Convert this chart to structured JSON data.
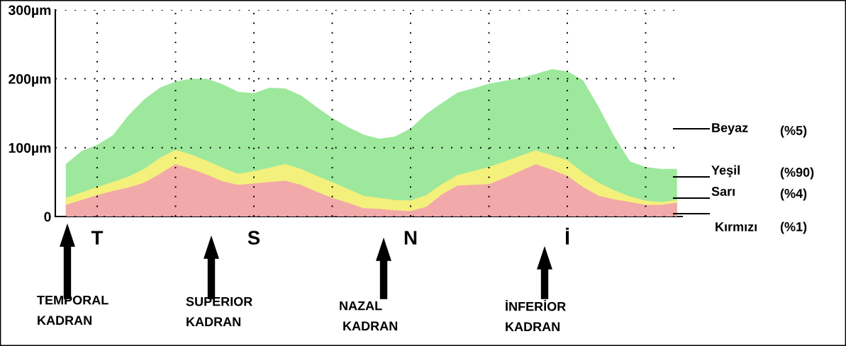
{
  "chart_data": {
    "type": "area",
    "categories": [
      null,
      null,
      "T",
      null,
      null,
      null,
      null,
      null,
      null,
      null,
      null,
      null,
      "S",
      null,
      null,
      null,
      null,
      null,
      null,
      null,
      null,
      null,
      "N",
      null,
      null,
      null,
      null,
      null,
      null,
      null,
      null,
      null,
      "İ",
      null,
      null,
      null,
      null,
      null,
      null,
      null
    ],
    "ylim": [
      0,
      300
    ],
    "yticks": [
      {
        "value": 0,
        "label": "0"
      },
      {
        "value": 100,
        "label": "100µm"
      },
      {
        "value": 200,
        "label": "200µm"
      },
      {
        "value": 300,
        "label": "300µm"
      }
    ],
    "grid": true,
    "series": [
      {
        "name": "Yeşil",
        "color": "#9de89d",
        "values": [
          76,
          95,
          104,
          118,
          147,
          170,
          187,
          196,
          200,
          200,
          192,
          181,
          179,
          187,
          186,
          176,
          159,
          143,
          130,
          119,
          113,
          116,
          128,
          149,
          165,
          180,
          186,
          193,
          197,
          201,
          207,
          214,
          211,
          198,
          159,
          116,
          80,
          72,
          69,
          69
        ]
      },
      {
        "name": "Sarı",
        "color": "#f4f07c",
        "values": [
          27,
          35,
          43,
          50,
          58,
          69,
          85,
          97,
          90,
          81,
          71,
          62,
          66,
          71,
          76,
          69,
          59,
          50,
          40,
          30,
          27,
          24,
          23,
          31,
          47,
          60,
          66,
          72,
          80,
          88,
          96,
          89,
          82,
          64,
          49,
          38,
          29,
          23,
          21,
          24
        ]
      },
      {
        "name": "Kırmızı",
        "color": "#f2a9a9",
        "values": [
          17,
          24,
          31,
          37,
          42,
          49,
          62,
          76,
          69,
          61,
          51,
          46,
          48,
          50,
          52,
          46,
          36,
          27,
          20,
          12,
          11,
          9,
          8,
          14,
          32,
          45,
          46,
          47,
          56,
          66,
          76,
          68,
          59,
          43,
          30,
          25,
          21,
          17,
          17,
          20
        ]
      }
    ],
    "annotations": [
      "Beyaz",
      "(%5)",
      "(%90)",
      "(%4)",
      "(%1)",
      "TEMPORAL\nKADRAN",
      "SUPERIOR\nKADRAN",
      "NAZAL\n KADRAN",
      "İNFERİOR\nKADRAN"
    ]
  }
}
